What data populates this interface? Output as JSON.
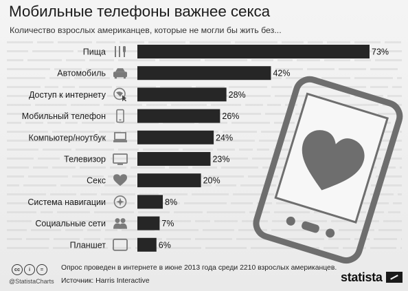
{
  "title": "Мобильные телефоны важнее секса",
  "subtitle": "Количество взрослых американцев, которые не могли бы жить без...",
  "chart_data": {
    "type": "bar",
    "orientation": "horizontal",
    "categories": [
      "Пища",
      "Автомобиль",
      "Доступ к интернету",
      "Мобильный телефон",
      "Компьютер/ноутбук",
      "Телевизор",
      "Секс",
      "Система навигации",
      "Социальные сети",
      "Планшет"
    ],
    "values": [
      73,
      42,
      28,
      26,
      24,
      23,
      20,
      8,
      7,
      6
    ],
    "value_labels": [
      "73%",
      "42%",
      "28%",
      "26%",
      "24%",
      "23%",
      "20%",
      "8%",
      "7%",
      "6%"
    ],
    "icons": [
      "fork-knife-icon",
      "car-icon",
      "globe-cursor-icon",
      "mobile-phone-icon",
      "laptop-icon",
      "tv-icon",
      "heart-icon",
      "compass-icon",
      "people-icon",
      "tablet-icon"
    ],
    "xlim": [
      0,
      73
    ],
    "grid": false,
    "bar_color": "#262626"
  },
  "footer": {
    "note": "Опрос проведен в интернете в июне 2013 года среди 2210 взрослых американцев.",
    "source": "Источник: Harris Interactive",
    "handle": "@StatistaCharts",
    "license_icons": [
      "cc",
      "i",
      "="
    ],
    "brand": "statista"
  }
}
